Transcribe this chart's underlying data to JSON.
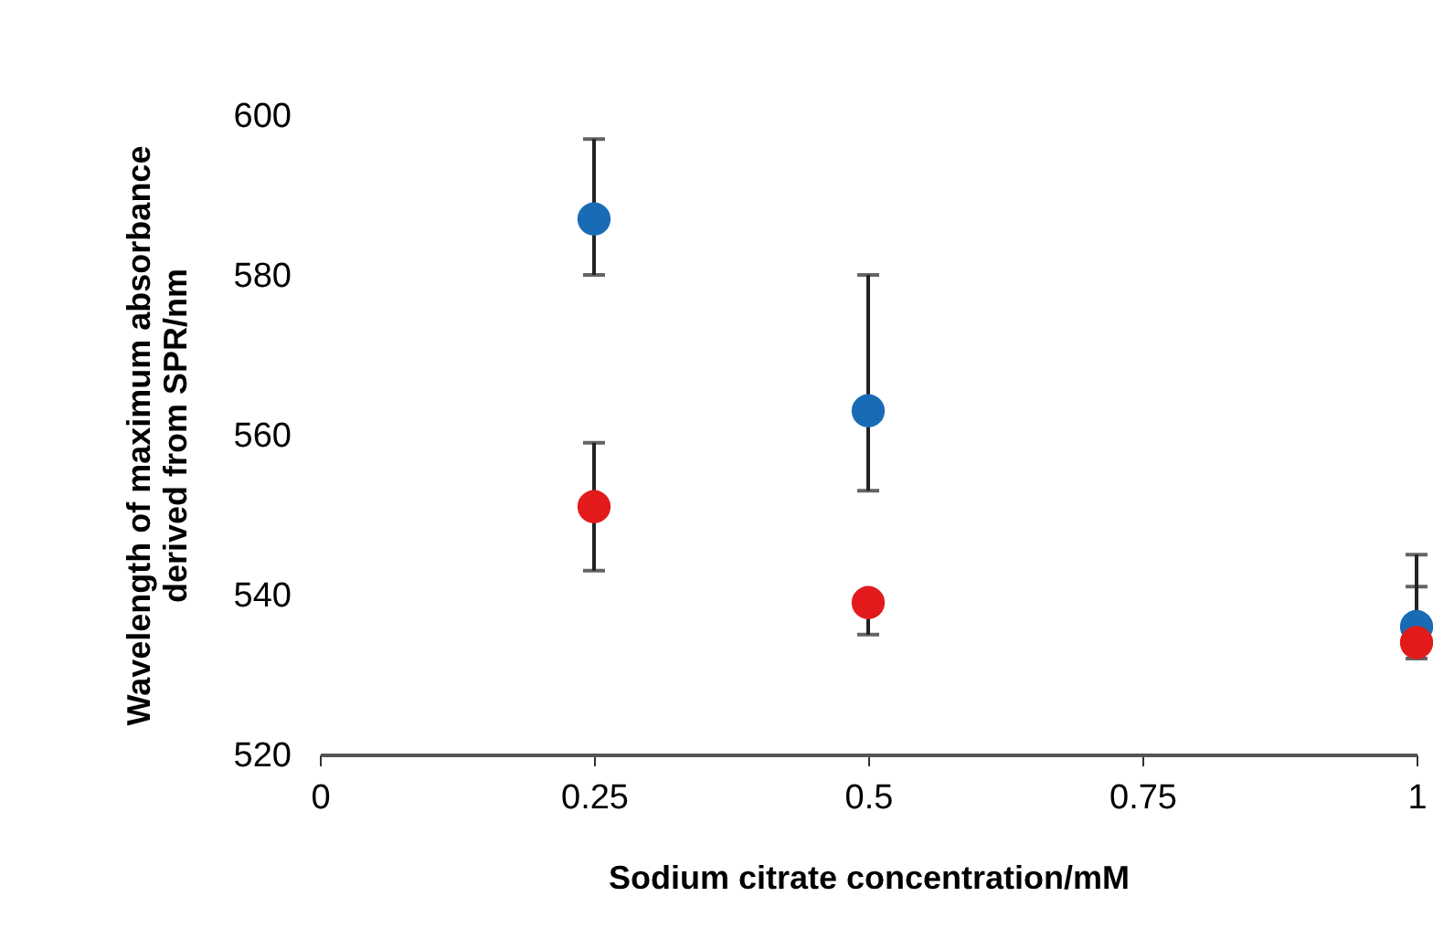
{
  "chart_data": {
    "type": "scatter",
    "xlabel": "Sodium citrate concentration/mM",
    "ylabel": "Wavelength of maximum absorbance\nderived from SPR/nm",
    "x": [
      0.25,
      0.5,
      1
    ],
    "series": [
      {
        "color": "#1a6bb5",
        "values": [
          587,
          563,
          536
        ],
        "errors": [
          [
            580,
            597
          ],
          [
            553,
            580
          ],
          [
            536,
            545
          ]
        ]
      },
      {
        "color": "#e31a1c",
        "values": [
          551,
          539,
          534
        ],
        "errors": [
          [
            543,
            559
          ],
          [
            535,
            539
          ],
          [
            532,
            541
          ]
        ]
      }
    ],
    "xlim": [
      0,
      1
    ],
    "xticks": [
      0,
      0.25,
      0.5,
      0.75,
      1
    ],
    "ylim": [
      520,
      600
    ],
    "yticks": [
      520,
      540,
      560,
      580,
      600
    ],
    "marker": "circle",
    "grid": false,
    "legend": false
  }
}
